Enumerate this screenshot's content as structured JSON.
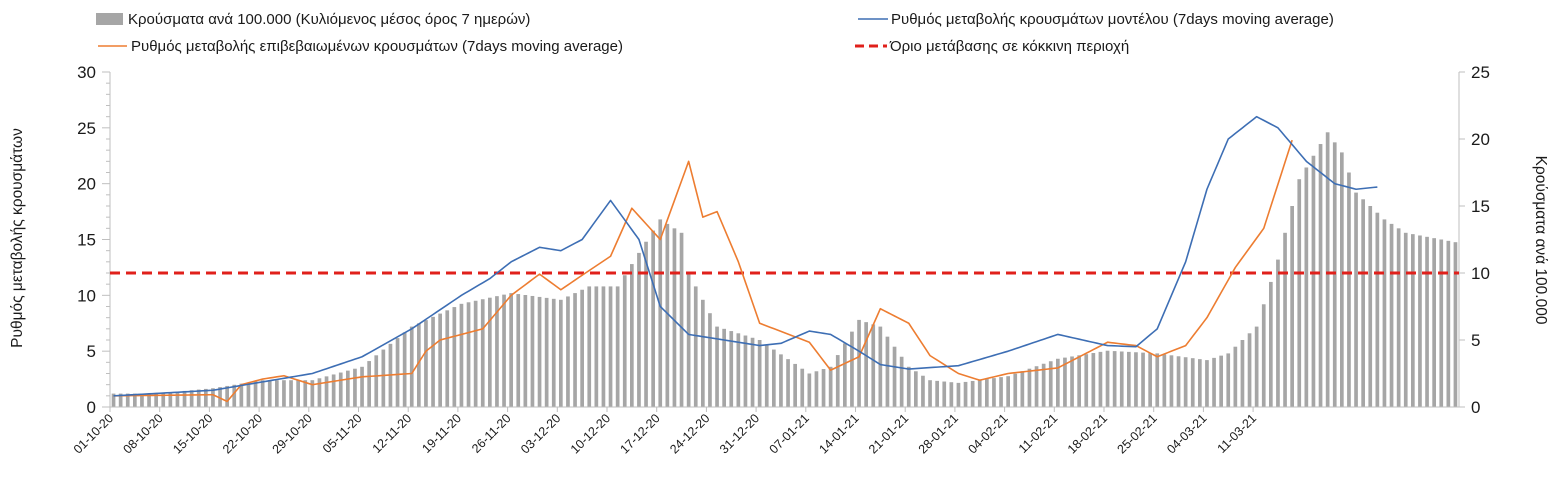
{
  "chart_data": {
    "type": "bar+line",
    "title": "",
    "ylabel_left": "Ρυθμός μεταβολής κρουσμάτων",
    "ylabel_right": "Κρούσματα ανά 100.000",
    "ylim_left": [
      0,
      30
    ],
    "ylim_right": [
      0,
      25
    ],
    "yticks_left": [
      "0",
      "5",
      "10",
      "15",
      "20",
      "25",
      "30"
    ],
    "yticks_right": [
      "0",
      "5",
      "10",
      "15",
      "20",
      "25"
    ],
    "xticks": [
      "01-10-20",
      "08-10-20",
      "15-10-20",
      "22-10-20",
      "29-10-20",
      "05-11-20",
      "12-11-20",
      "19-11-20",
      "26-11-20",
      "03-12-20",
      "10-12-20",
      "17-12-20",
      "24-12-20",
      "31-12-20",
      "07-01-21",
      "14-01-21",
      "21-01-21",
      "28-01-21",
      "04-02-21",
      "11-02-21",
      "18-02-21",
      "25-02-21",
      "04-03-21",
      "11-03-21"
    ],
    "legend": {
      "bars": "Κρούσματα ανά 100.000 (Κυλιόμενος μέσος όρος 7 ημερών)",
      "model_line": "Ρυθμός μεταβολής κρουσμάτων μοντέλου (7days moving average)",
      "confirmed_line": "Ρυθμός μεταβολής επιβεβαιωμένων κρουσμάτων (7days moving average)",
      "threshold": "Όριο μετάβασης σε κόκκινη περιοχή"
    },
    "colors": {
      "bars": "#a6a6a6",
      "model_line": "#3d6eb4",
      "confirmed_line": "#ed7d31",
      "threshold": "#e0201b",
      "axis": "#bfbfbf"
    },
    "threshold_value": 12,
    "bars_keyframes": [
      [
        0,
        1
      ],
      [
        6,
        1
      ],
      [
        14,
        1.4
      ],
      [
        21,
        2
      ],
      [
        28,
        2
      ],
      [
        35,
        3
      ],
      [
        42,
        6
      ],
      [
        49,
        7.7
      ],
      [
        56,
        8.5
      ],
      [
        63,
        8
      ],
      [
        67,
        9
      ],
      [
        71,
        9
      ],
      [
        77,
        14
      ],
      [
        80,
        13
      ],
      [
        81,
        10
      ],
      [
        85,
        6
      ],
      [
        91,
        5
      ],
      [
        98,
        2.5
      ],
      [
        101,
        3
      ],
      [
        105,
        6.5
      ],
      [
        108,
        6
      ],
      [
        112,
        3
      ],
      [
        115,
        2
      ],
      [
        119,
        1.8
      ],
      [
        126,
        2.3
      ],
      [
        133,
        3.6
      ],
      [
        140,
        4.2
      ],
      [
        147,
        4
      ],
      [
        154,
        3.5
      ],
      [
        157,
        4
      ],
      [
        161,
        6
      ],
      [
        164,
        11
      ],
      [
        167,
        17
      ],
      [
        171,
        20.5
      ],
      [
        173,
        19
      ],
      [
        175,
        16
      ],
      [
        179,
        14
      ],
      [
        182,
        13
      ],
      [
        189,
        12.3
      ]
    ],
    "model_keyframes": [
      [
        0,
        1
      ],
      [
        14,
        1.5
      ],
      [
        28,
        3
      ],
      [
        35,
        4.5
      ],
      [
        42,
        7
      ],
      [
        49,
        10
      ],
      [
        53,
        11.5
      ],
      [
        56,
        13
      ],
      [
        60,
        14.3
      ],
      [
        63,
        14
      ],
      [
        66,
        15
      ],
      [
        70,
        18.5
      ],
      [
        74,
        15
      ],
      [
        77,
        9
      ],
      [
        81,
        6.5
      ],
      [
        88,
        5.8
      ],
      [
        91,
        5.5
      ],
      [
        94,
        5.7
      ],
      [
        98,
        6.8
      ],
      [
        101,
        6.5
      ],
      [
        105,
        5
      ],
      [
        108,
        3.8
      ],
      [
        112,
        3.4
      ],
      [
        119,
        3.7
      ],
      [
        126,
        5
      ],
      [
        133,
        6.5
      ],
      [
        140,
        5.5
      ],
      [
        144,
        5.4
      ],
      [
        147,
        7
      ],
      [
        151,
        13
      ],
      [
        154,
        19.5
      ],
      [
        157,
        24
      ],
      [
        161,
        26
      ],
      [
        164,
        25
      ],
      [
        168,
        22
      ],
      [
        172,
        20
      ],
      [
        175,
        19.5
      ],
      [
        178,
        19.7
      ]
    ],
    "confirmed_keyframes": [
      [
        0,
        1
      ],
      [
        14,
        1.1
      ],
      [
        16,
        0.5
      ],
      [
        18,
        2
      ],
      [
        21,
        2.5
      ],
      [
        24,
        2.8
      ],
      [
        28,
        2
      ],
      [
        35,
        2.7
      ],
      [
        42,
        3
      ],
      [
        44,
        5
      ],
      [
        46,
        6
      ],
      [
        49,
        6.5
      ],
      [
        52,
        7
      ],
      [
        56,
        10
      ],
      [
        60,
        11.9
      ],
      [
        63,
        10.5
      ],
      [
        66,
        11.8
      ],
      [
        70,
        13.5
      ],
      [
        73,
        17.8
      ],
      [
        77,
        15
      ],
      [
        81,
        22
      ],
      [
        83,
        17
      ],
      [
        85,
        17.5
      ],
      [
        88,
        13
      ],
      [
        91,
        7.5
      ],
      [
        98,
        5.8
      ],
      [
        101,
        3.3
      ],
      [
        105,
        4.5
      ],
      [
        108,
        8.8
      ],
      [
        112,
        7.5
      ],
      [
        115,
        4.6
      ],
      [
        119,
        3
      ],
      [
        122,
        2.4
      ],
      [
        126,
        3
      ],
      [
        133,
        3.5
      ],
      [
        140,
        5.8
      ],
      [
        144,
        5.5
      ],
      [
        147,
        4.5
      ],
      [
        151,
        5.5
      ],
      [
        154,
        8
      ],
      [
        158,
        12.5
      ],
      [
        162,
        16
      ],
      [
        166,
        23.9
      ]
    ]
  }
}
